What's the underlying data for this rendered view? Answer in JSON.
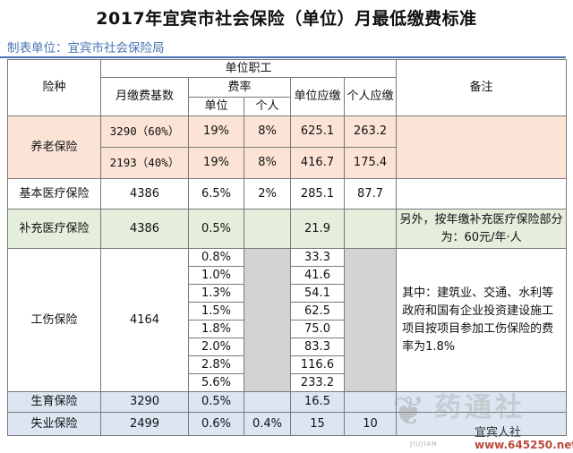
{
  "title": "2017年宜宾市社会保险（单位）月最低缴费标准",
  "maker": "制表单位：宜宾市社会保险局",
  "headers": {
    "insurance_type": "险种",
    "unit_staff": "单位职工",
    "monthly_base": "月缴费基数",
    "rate": "费率",
    "rate_unit": "单位",
    "rate_personal": "个人",
    "unit_due": "单位应缴",
    "personal_due": "个人应缴",
    "remarks": "备注"
  },
  "pension": {
    "name": "养老保险",
    "rows": [
      {
        "base": "3290（60%）",
        "unit_rate": "19%",
        "personal_rate": "8%",
        "unit_due": "625.1",
        "personal_due": "263.2"
      },
      {
        "base": "2193（40%）",
        "unit_rate": "19%",
        "personal_rate": "8%",
        "unit_due": "416.7",
        "personal_due": "175.4"
      }
    ]
  },
  "medical": {
    "name": "基本医疗保险",
    "base": "4386",
    "unit_rate": "6.5%",
    "personal_rate": "2%",
    "unit_due": "285.1",
    "personal_due": "87.7"
  },
  "supp_medical": {
    "name": "补充医疗保险",
    "base": "4386",
    "unit_rate": "0.5%",
    "unit_due": "21.9",
    "remark": "另外，按年缴补充医疗保险部分为：60元/年·人"
  },
  "injury": {
    "name": "工伤保险",
    "base": "4164",
    "rates": [
      {
        "rate": "0.8%",
        "due": "33.3"
      },
      {
        "rate": "1.0%",
        "due": "41.6"
      },
      {
        "rate": "1.3%",
        "due": "54.1"
      },
      {
        "rate": "1.5%",
        "due": "62.5"
      },
      {
        "rate": "1.8%",
        "due": "75.0"
      },
      {
        "rate": "2.0%",
        "due": "83.3"
      },
      {
        "rate": "2.8%",
        "due": "116.6"
      },
      {
        "rate": "5.6%",
        "due": "233.2"
      }
    ],
    "remark": "其中：建筑业、交通、水利等政府和国有企业投资建设施工项目按项目参加工伤保险的费率为1.8%"
  },
  "maternity": {
    "name": "生育保险",
    "base": "3290",
    "unit_rate": "0.5%",
    "unit_due": "16.5"
  },
  "unemployment": {
    "name": "失业保险",
    "base": "2499",
    "unit_rate": "0.6%",
    "personal_rate": "0.4%",
    "unit_due": "15",
    "personal_due": "10"
  },
  "watermark": {
    "text": "药通社",
    "account": "宜宾人社",
    "url": "www.645250.net",
    "sub": "JIUJIAN"
  },
  "colors": {
    "pension_bg": "#fbe4d6",
    "supp_bg": "#e4eedb",
    "bottom_bg": "#dce6f2",
    "blank_bg": "#d3d3d3",
    "maker_text": "#4a74b5"
  }
}
